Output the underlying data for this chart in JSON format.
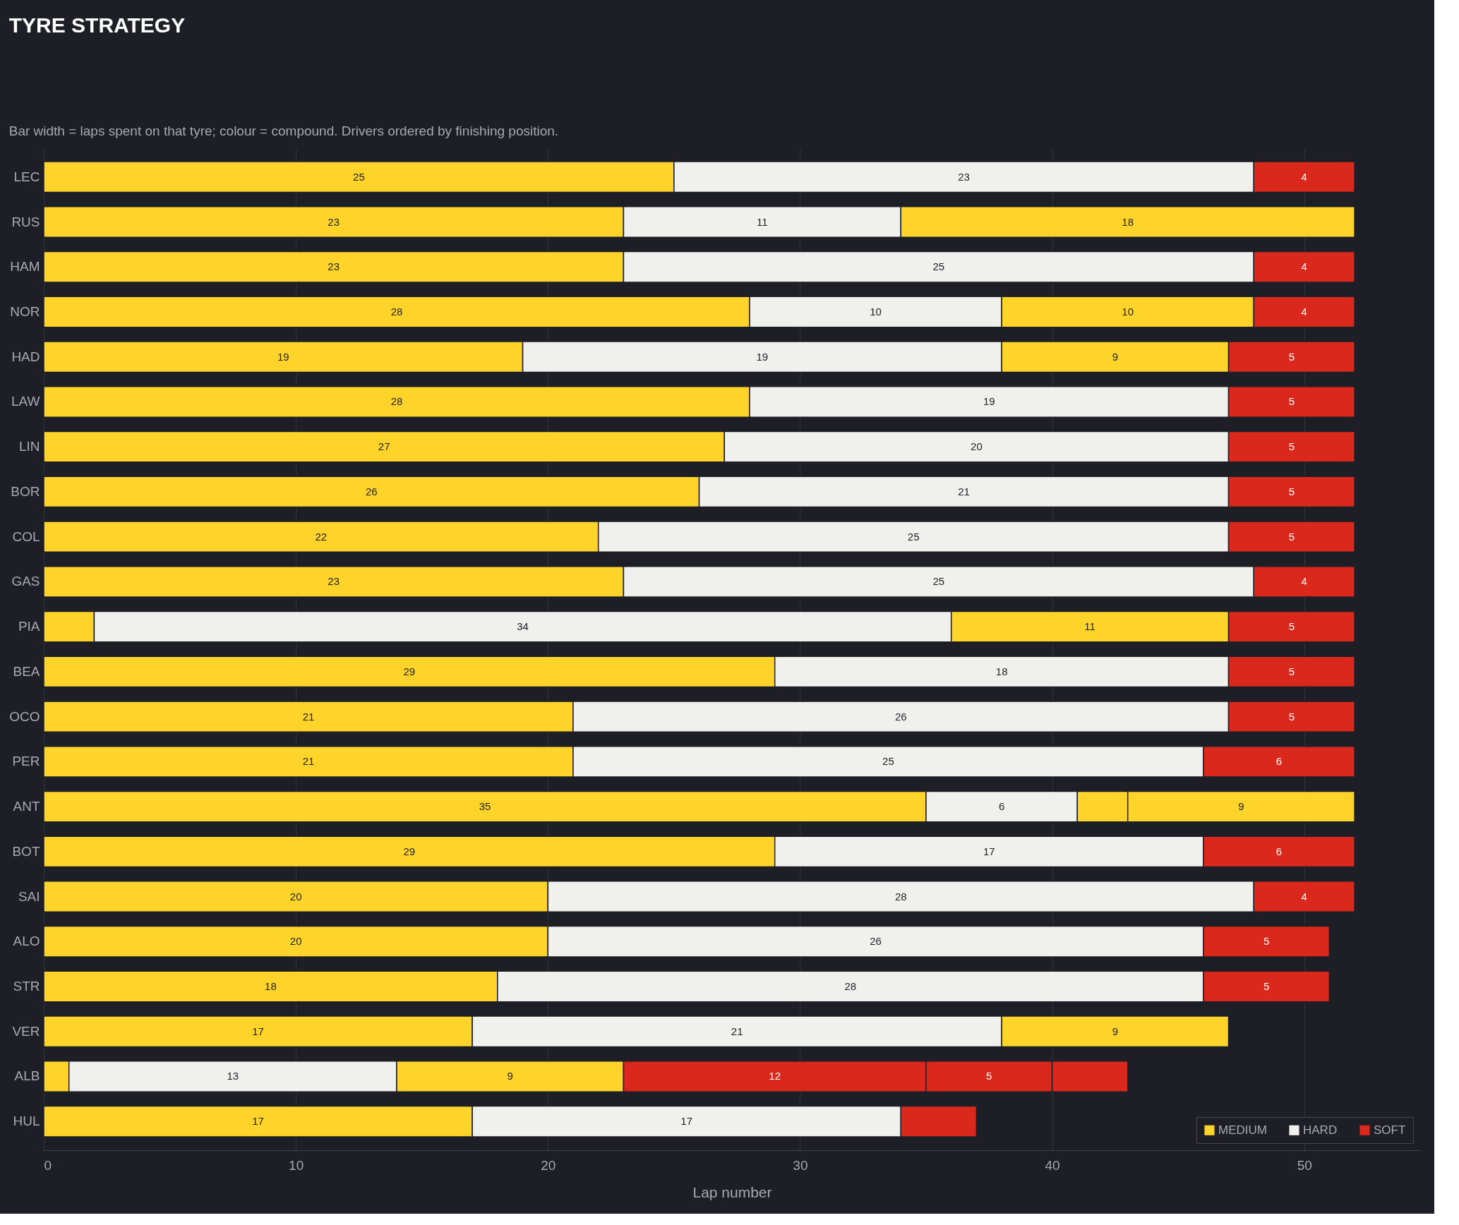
{
  "chart_data": {
    "type": "bar",
    "orientation": "horizontal",
    "stacked": true,
    "title": "TYRE STRATEGY",
    "subtitle": "Bar width = laps spent on that tyre; colour = compound. Drivers ordered by finishing position.",
    "xlabel": "Lap number",
    "categories": [
      "LEC",
      "RUS",
      "HAM",
      "NOR",
      "HAD",
      "LAW",
      "LIN",
      "BOR",
      "COL",
      "GAS",
      "PIA",
      "BEA",
      "OCO",
      "PER",
      "ANT",
      "BOT",
      "SAI",
      "ALO",
      "STR",
      "VER",
      "ALB",
      "HUL"
    ],
    "xlim": [
      0,
      54.6
    ],
    "xticks": [
      0,
      10,
      20,
      30,
      40,
      50
    ],
    "grid": "x",
    "legend": "bottom right",
    "series": [
      {
        "values": [
          25,
          23,
          23,
          28,
          19,
          28,
          27,
          26,
          22,
          23,
          2,
          29,
          21,
          21,
          35,
          29,
          20,
          20,
          18,
          17,
          1,
          17
        ],
        "colors": [
          "#ffd42a",
          "#ffd42a",
          "#ffd42a",
          "#ffd42a",
          "#ffd42a",
          "#ffd42a",
          "#ffd42a",
          "#ffd42a",
          "#ffd42a",
          "#ffd42a",
          "#ffd42a",
          "#ffd42a",
          "#ffd42a",
          "#ffd42a",
          "#ffd42a",
          "#ffd42a",
          "#ffd42a",
          "#ffd42a",
          "#ffd42a",
          "#ffd42a",
          "#ffd42a",
          "#ffd42a"
        ],
        "value_labels": [
          "25",
          "23",
          "23",
          "28",
          "19",
          "28",
          "27",
          "26",
          "22",
          "23",
          null,
          "29",
          "21",
          "21",
          "35",
          "29",
          "20",
          "20",
          "18",
          "17",
          null,
          "17"
        ]
      },
      {
        "values": [
          23,
          11,
          25,
          10,
          19,
          19,
          20,
          21,
          25,
          25,
          34,
          18,
          26,
          25,
          6,
          17,
          28,
          26,
          28,
          21,
          13,
          17
        ],
        "colors": [
          "#f0f0ec",
          "#f0f0ec",
          "#f0f0ec",
          "#f0f0ec",
          "#f0f0ec",
          "#f0f0ec",
          "#f0f0ec",
          "#f0f0ec",
          "#f0f0ec",
          "#f0f0ec",
          "#f0f0ec",
          "#f0f0ec",
          "#f0f0ec",
          "#f0f0ec",
          "#f0f0ec",
          "#f0f0ec",
          "#f0f0ec",
          "#f0f0ec",
          "#f0f0ec",
          "#f0f0ec",
          "#f0f0ec",
          "#f0f0ec"
        ],
        "value_labels": [
          "23",
          "11",
          "25",
          "10",
          "19",
          "19",
          "20",
          "21",
          "25",
          "25",
          "34",
          "18",
          "26",
          "25",
          "6",
          "17",
          "28",
          "26",
          "28",
          "21",
          "13",
          "17"
        ]
      },
      {
        "values": [
          4,
          18,
          4,
          10,
          9,
          5,
          5,
          5,
          5,
          4,
          11,
          5,
          5,
          6,
          2,
          6,
          4,
          5,
          5,
          9,
          9,
          3
        ],
        "colors": [
          "#da291c",
          "#ffd42a",
          "#da291c",
          "#ffd42a",
          "#ffd42a",
          "#da291c",
          "#da291c",
          "#da291c",
          "#da291c",
          "#da291c",
          "#ffd42a",
          "#da291c",
          "#da291c",
          "#da291c",
          "#ffd42a",
          "#da291c",
          "#da291c",
          "#da291c",
          "#da291c",
          "#ffd42a",
          "#ffd42a",
          "#da291c"
        ],
        "value_labels": [
          "4",
          "18",
          "4",
          "10",
          "9",
          "5",
          "5",
          "5",
          "5",
          "4",
          "11",
          "5",
          "5",
          "6",
          null,
          "6",
          "4",
          "5",
          "5",
          "9",
          "9",
          null
        ]
      },
      {
        "values": [
          null,
          null,
          null,
          4,
          5,
          null,
          null,
          null,
          null,
          null,
          5,
          null,
          null,
          null,
          9,
          null,
          null,
          null,
          null,
          null,
          12,
          null
        ],
        "colors": [
          "#da291c",
          "#da291c",
          "#da291c",
          "#da291c",
          "#da291c",
          "#da291c",
          "#da291c",
          "#da291c",
          "#da291c",
          "#da291c",
          "#da291c",
          "#da291c",
          "#da291c",
          "#da291c",
          "#ffd42a",
          "#da291c",
          "#da291c",
          "#da291c",
          "#da291c",
          "#da291c",
          "#da291c",
          "#da291c"
        ],
        "value_labels": [
          null,
          null,
          null,
          "4",
          "5",
          null,
          null,
          null,
          null,
          null,
          "5",
          null,
          null,
          null,
          "9",
          null,
          null,
          null,
          null,
          null,
          "12",
          null
        ]
      },
      {
        "values": [
          null,
          null,
          null,
          null,
          null,
          null,
          null,
          null,
          null,
          null,
          null,
          null,
          null,
          null,
          null,
          null,
          null,
          null,
          null,
          null,
          5,
          null
        ],
        "colors": [
          "#da291c",
          "#da291c",
          "#da291c",
          "#da291c",
          "#da291c",
          "#da291c",
          "#da291c",
          "#da291c",
          "#da291c",
          "#da291c",
          "#da291c",
          "#da291c",
          "#da291c",
          "#da291c",
          "#da291c",
          "#da291c",
          "#da291c",
          "#da291c",
          "#da291c",
          "#da291c",
          "#da291c",
          "#da291c"
        ],
        "value_labels": [
          null,
          null,
          null,
          null,
          null,
          null,
          null,
          null,
          null,
          null,
          null,
          null,
          null,
          null,
          null,
          null,
          null,
          null,
          null,
          null,
          "5",
          null
        ]
      },
      {
        "values": [
          null,
          null,
          null,
          null,
          null,
          null,
          null,
          null,
          null,
          null,
          null,
          null,
          null,
          null,
          null,
          null,
          null,
          null,
          null,
          null,
          3,
          null
        ],
        "colors": [
          "#da291c",
          "#da291c",
          "#da291c",
          "#da291c",
          "#da291c",
          "#da291c",
          "#da291c",
          "#da291c",
          "#da291c",
          "#da291c",
          "#da291c",
          "#da291c",
          "#da291c",
          "#da291c",
          "#da291c",
          "#da291c",
          "#da291c",
          "#da291c",
          "#da291c",
          "#da291c",
          "#da291c",
          "#da291c"
        ],
        "value_labels": [
          null,
          null,
          null,
          null,
          null,
          null,
          null,
          null,
          null,
          null,
          null,
          null,
          null,
          null,
          null,
          null,
          null,
          null,
          null,
          null,
          null,
          null
        ]
      },
      {
        "name": "MEDIUM",
        "color": "#ffd42a",
        "values": [
          null,
          null,
          null,
          null,
          null,
          null,
          null,
          null,
          null,
          null,
          null,
          null,
          null,
          null,
          null,
          null,
          null,
          null,
          null,
          null,
          null,
          null
        ]
      },
      {
        "name": "HARD",
        "color": "#f0f0ec",
        "values": [
          null,
          null,
          null,
          null,
          null,
          null,
          null,
          null,
          null,
          null,
          null,
          null,
          null,
          null,
          null,
          null,
          null,
          null,
          null,
          null,
          null,
          null
        ]
      },
      {
        "name": "SOFT",
        "color": "#da291c",
        "values": [
          null,
          null,
          null,
          null,
          null,
          null,
          null,
          null,
          null,
          null,
          null,
          null,
          null,
          null,
          null,
          null,
          null,
          null,
          null,
          null,
          null,
          null
        ]
      }
    ]
  }
}
